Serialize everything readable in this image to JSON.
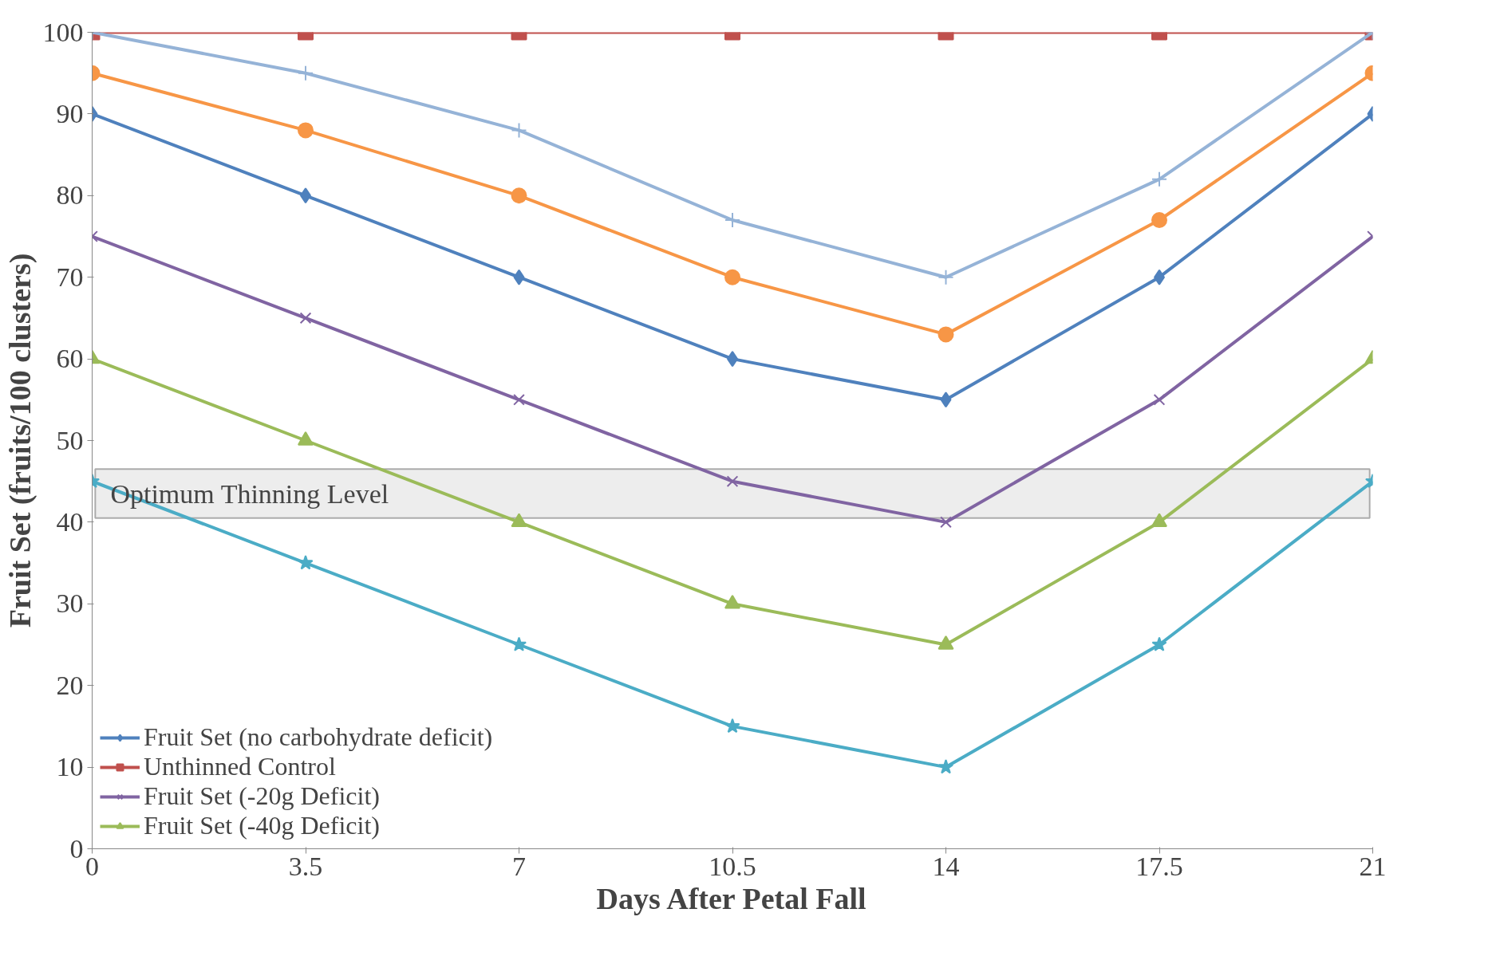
{
  "chart_data": {
    "type": "line",
    "xlabel": "Days After Petal Fall",
    "ylabel": "Fruit Set (fruits/100 clusters)",
    "x": [
      0,
      3.5,
      7,
      10.5,
      14,
      17.5,
      21
    ],
    "series": [
      {
        "name": "Fruit Set (no carbohydrate deficit)",
        "color": "#4f81bd",
        "marker": "diamond",
        "values": [
          90,
          80,
          70,
          60,
          55,
          70,
          90
        ]
      },
      {
        "name": "Unthinned Control",
        "color": "#c0504d",
        "marker": "square",
        "values": [
          100,
          100,
          100,
          100,
          100,
          100,
          100
        ]
      },
      {
        "name": "Fruit Set (-20g Deficit)",
        "color": "#8064a2",
        "marker": "x",
        "values": [
          75,
          65,
          55,
          45,
          40,
          55,
          75
        ]
      },
      {
        "name": "Fruit Set (-40g Deficit)",
        "color": "#9bbb59",
        "marker": "triangle",
        "values": [
          60,
          50,
          40,
          30,
          25,
          40,
          60
        ]
      },
      {
        "color": "#4bacc6",
        "marker": "star",
        "values": [
          45,
          35,
          25,
          15,
          10,
          25,
          45
        ]
      },
      {
        "color": "#f79646",
        "marker": "circle",
        "values": [
          95,
          88,
          80,
          70,
          63,
          77,
          95
        ]
      },
      {
        "color": "#95b3d7",
        "marker": "cross",
        "values": [
          100,
          95,
          88,
          77,
          70,
          82,
          100
        ]
      }
    ],
    "bands": [
      {
        "axis": "y",
        "from": 40.5,
        "to": 46.5,
        "label": "Optimum Thinning Level",
        "color": "#e6e6e6"
      }
    ],
    "xlim": [
      0,
      21
    ],
    "xticks": [
      0,
      3.5,
      7,
      10.5,
      14,
      17.5,
      21
    ],
    "ylim": [
      0,
      100
    ],
    "yticks": [
      0,
      10,
      20,
      30,
      40,
      50,
      60,
      70,
      80,
      90,
      100
    ],
    "grid": false,
    "legend": "bottom left",
    "line_style": "solid"
  }
}
